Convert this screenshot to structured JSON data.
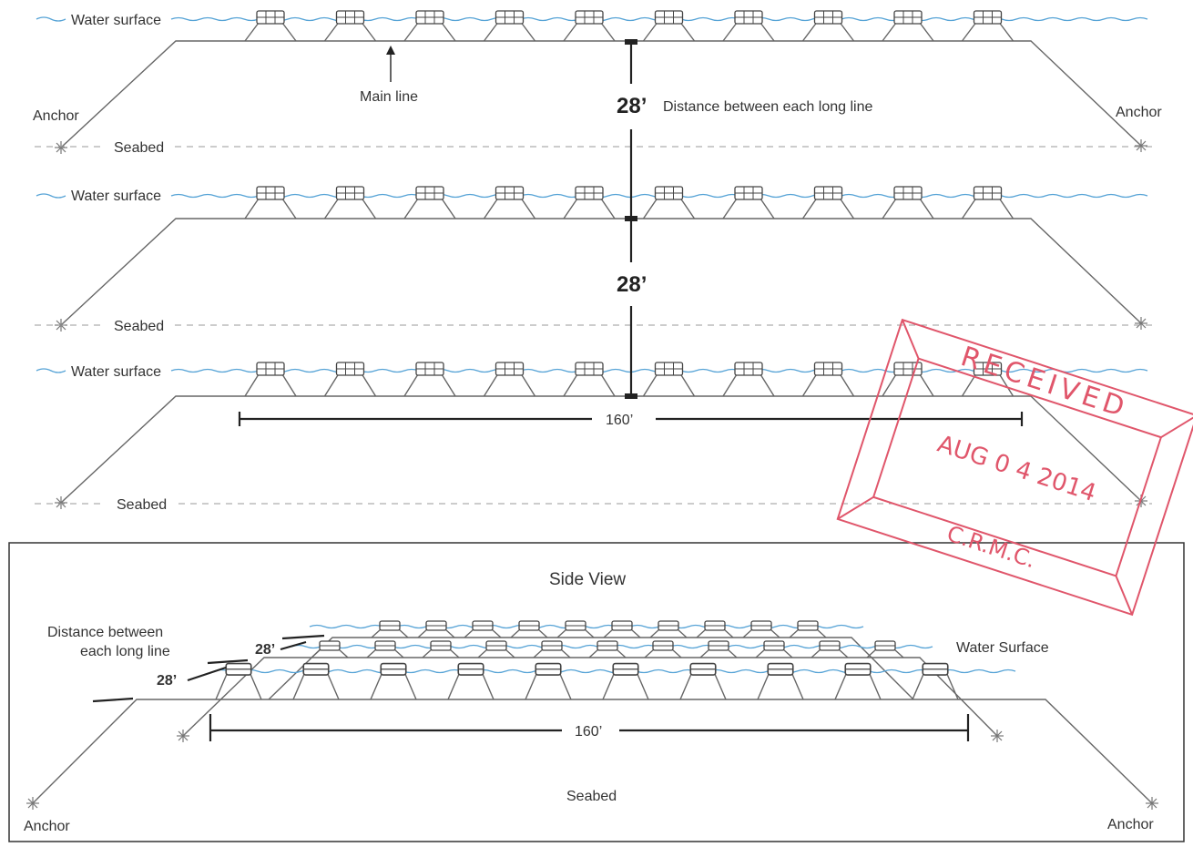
{
  "plan_view": {
    "water_surface_label": "Water surface",
    "seabed_label": "Seabed",
    "anchor_label": "Anchor",
    "main_line_label": "Main line",
    "spacing_value": "28’",
    "spacing_caption": "Distance between each long line",
    "length_value": "160’",
    "long_line_count": 3,
    "floats_per_line": 10
  },
  "side_view": {
    "title": "Side View",
    "spacing_caption_line1": "Distance between",
    "spacing_caption_line2": "each long line",
    "spacing_value": "28’",
    "water_surface_label": "Water Surface",
    "length_value": "160’",
    "seabed_label": "Seabed",
    "anchor_label": "Anchor"
  },
  "stamp": {
    "line1": "RECEIVED",
    "line2": "AUG 0 4 2014",
    "line3": "C.R.M.C.",
    "color": "#e0566b"
  },
  "colors": {
    "water": "#56a3d6",
    "rope": "#666666",
    "ink": "#222222"
  }
}
